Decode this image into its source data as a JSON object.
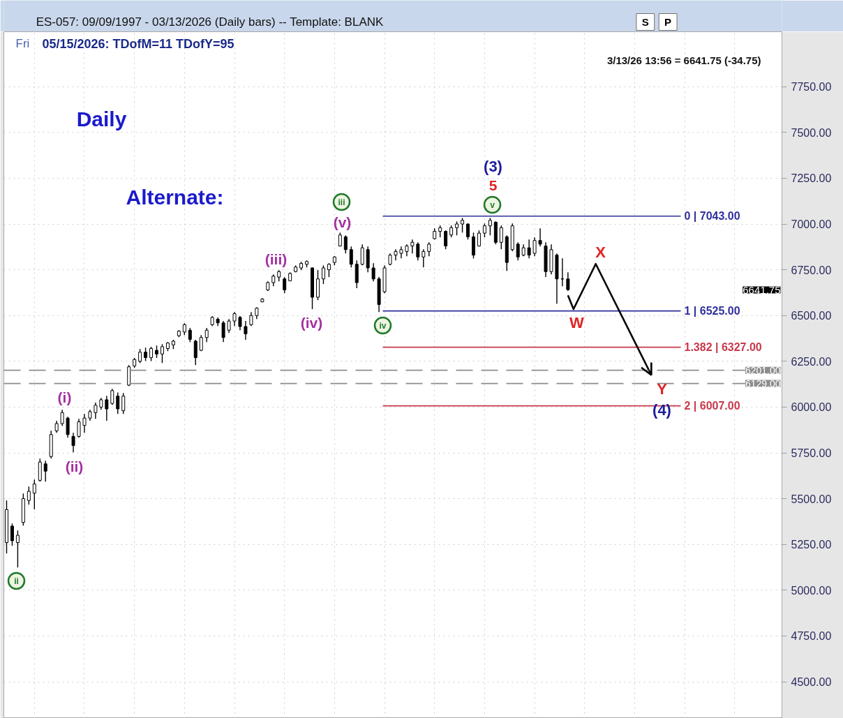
{
  "chart_data": {
    "type": "candlestick",
    "title": "ES-057:  09/09/1997 - 03/13/2026  (Daily bars)  --  Template: BLANK",
    "color": "#000000",
    "categories": [
      null,
      null,
      null,
      null,
      null,
      null,
      null,
      null,
      null,
      null,
      null,
      null,
      null,
      null,
      null,
      null,
      null,
      null,
      null,
      null,
      null,
      null,
      null,
      null,
      null,
      null,
      null,
      null,
      null,
      null,
      null,
      null,
      null,
      null,
      null,
      null,
      null,
      null,
      null,
      null,
      null,
      null,
      null,
      null,
      null,
      null,
      null,
      null,
      null,
      null,
      null,
      null,
      null,
      null,
      null,
      null,
      null,
      null,
      null,
      null,
      null,
      null,
      null,
      null,
      null,
      null,
      null,
      null,
      null,
      null,
      null,
      null,
      null,
      null,
      null,
      null,
      null,
      null,
      null,
      null,
      null,
      null,
      null,
      null,
      null,
      null,
      null,
      null,
      null,
      null,
      null,
      null,
      null,
      null,
      null,
      null,
      null,
      null,
      null,
      null,
      null,
      null,
      null,
      null,
      null,
      null,
      null,
      null,
      null,
      null,
      null,
      null,
      null,
      null,
      null,
      null,
      null,
      null,
      null,
      null,
      null,
      null,
      null,
      null,
      null,
      null,
      null,
      null,
      null,
      null,
      null,
      null,
      null,
      null,
      null,
      null,
      null,
      null,
      null,
      null
    ],
    "ohlc": [
      [
        5260,
        5490,
        5200,
        5440
      ],
      [
        5350,
        5364,
        5242,
        5270
      ],
      [
        5260,
        5326,
        5124,
        5300
      ],
      [
        5370,
        5528,
        5353,
        5500
      ],
      [
        5490,
        5566,
        5467,
        5540
      ],
      [
        5530,
        5604,
        5441,
        5580
      ],
      [
        5600,
        5719,
        5593,
        5700
      ],
      [
        5690,
        5707,
        5593,
        5650
      ],
      [
        5730,
        5871,
        5719,
        5850
      ],
      [
        5870,
        5925,
        5860,
        5910
      ],
      [
        5910,
        5985,
        5898,
        5970
      ],
      [
        5940,
        5947,
        5833,
        5850
      ],
      [
        5840,
        5860,
        5753,
        5790
      ],
      [
        5840,
        5936,
        5833,
        5920
      ],
      [
        5900,
        5963,
        5860,
        5940
      ],
      [
        5940,
        5985,
        5925,
        5975
      ],
      [
        5970,
        6024,
        5936,
        6010
      ],
      [
        6000,
        6050,
        5985,
        6040
      ],
      [
        6040,
        6062,
        5925,
        5990
      ],
      [
        6020,
        6100,
        6012,
        6090
      ],
      [
        6060,
        6080,
        5963,
        5990
      ],
      [
        5980,
        6077,
        5963,
        6060
      ],
      [
        6120,
        6229,
        6115,
        6220
      ],
      [
        6225,
        6268,
        6214,
        6260
      ],
      [
        6250,
        6317,
        6241,
        6300
      ],
      [
        6300,
        6325,
        6252,
        6270
      ],
      [
        6270,
        6329,
        6252,
        6320
      ],
      [
        6310,
        6336,
        6268,
        6290
      ],
      [
        6290,
        6344,
        6241,
        6330
      ],
      [
        6320,
        6355,
        6306,
        6350
      ],
      [
        6340,
        6367,
        6317,
        6360
      ],
      [
        6390,
        6420,
        6382,
        6415
      ],
      [
        6410,
        6458,
        6393,
        6450
      ],
      [
        6420,
        6432,
        6355,
        6370
      ],
      [
        6360,
        6367,
        6229,
        6270
      ],
      [
        6310,
        6393,
        6306,
        6380
      ],
      [
        6380,
        6432,
        6355,
        6420
      ],
      [
        6450,
        6497,
        6443,
        6490
      ],
      [
        6480,
        6489,
        6443,
        6460
      ],
      [
        6460,
        6470,
        6355,
        6380
      ],
      [
        6420,
        6481,
        6405,
        6470
      ],
      [
        6470,
        6519,
        6443,
        6510
      ],
      [
        6490,
        6497,
        6420,
        6440
      ],
      [
        6440,
        6470,
        6367,
        6400
      ],
      [
        6450,
        6519,
        6443,
        6500
      ],
      [
        6500,
        6546,
        6481,
        6540
      ],
      [
        6575,
        6595,
        6572,
        6590
      ],
      [
        6640,
        6687,
        6634,
        6680
      ],
      [
        6680,
        6725,
        6660,
        6715
      ],
      [
        6710,
        6748,
        6687,
        6740
      ],
      [
        6700,
        6710,
        6622,
        6640
      ],
      [
        6690,
        6736,
        6687,
        6730
      ],
      [
        6740,
        6774,
        6736,
        6765
      ],
      [
        6760,
        6793,
        6748,
        6785
      ],
      [
        6780,
        6801,
        6763,
        6795
      ],
      [
        6760,
        6763,
        6535,
        6600
      ],
      [
        6600,
        6748,
        6584,
        6700
      ],
      [
        6700,
        6774,
        6672,
        6760
      ],
      [
        6750,
        6786,
        6710,
        6780
      ],
      [
        6790,
        6824,
        6774,
        6820
      ],
      [
        6880,
        6953,
        6877,
        6940
      ],
      [
        6930,
        6938,
        6839,
        6860
      ],
      [
        6860,
        6877,
        6763,
        6780
      ],
      [
        6780,
        6801,
        6649,
        6680
      ],
      [
        6780,
        6889,
        6774,
        6870
      ],
      [
        6860,
        6877,
        6736,
        6760
      ],
      [
        6760,
        6786,
        6687,
        6700
      ],
      [
        6700,
        6710,
        6519,
        6560
      ],
      [
        6630,
        6774,
        6622,
        6760
      ],
      [
        6780,
        6839,
        6774,
        6830
      ],
      [
        6830,
        6862,
        6801,
        6850
      ],
      [
        6840,
        6877,
        6812,
        6860
      ],
      [
        6850,
        6889,
        6824,
        6880
      ],
      [
        6880,
        6915,
        6839,
        6900
      ],
      [
        6890,
        6900,
        6801,
        6820
      ],
      [
        6820,
        6862,
        6763,
        6850
      ],
      [
        6850,
        6900,
        6824,
        6890
      ],
      [
        6920,
        6976,
        6915,
        6960
      ],
      [
        6960,
        6992,
        6927,
        6980
      ],
      [
        6960,
        6965,
        6862,
        6880
      ],
      [
        6940,
        6992,
        6927,
        6980
      ],
      [
        6980,
        7014,
        6938,
        7000
      ],
      [
        7000,
        7033,
        6953,
        7020
      ],
      [
        7000,
        7003,
        6915,
        6930
      ],
      [
        6930,
        6953,
        6812,
        6830
      ],
      [
        6880,
        6965,
        6877,
        6950
      ],
      [
        6950,
        7003,
        6927,
        6990
      ],
      [
        6990,
        7033,
        6938,
        7020
      ],
      [
        7010,
        7014,
        6889,
        6900
      ],
      [
        6900,
        6992,
        6862,
        6980
      ],
      [
        6930,
        6938,
        6744,
        6790
      ],
      [
        6860,
        7003,
        6851,
        6990
      ],
      [
        6890,
        6900,
        6801,
        6820
      ],
      [
        6830,
        6889,
        6824,
        6870
      ],
      [
        6870,
        6915,
        6812,
        6830
      ],
      [
        6840,
        6927,
        6824,
        6910
      ],
      [
        6910,
        6976,
        6877,
        6890
      ],
      [
        6880,
        6900,
        6710,
        6740
      ],
      [
        6740,
        6889,
        6725,
        6860
      ],
      [
        6830,
        6839,
        6565,
        6700
      ],
      [
        6700,
        6812,
        6660,
        6700
      ],
      [
        6700,
        6736,
        6634,
        6641.75
      ],
      null,
      null,
      null,
      null,
      null,
      null,
      null,
      null,
      null,
      null,
      null,
      null,
      null,
      null,
      null,
      null,
      null,
      null,
      null,
      null,
      null,
      null,
      null,
      null,
      null,
      null,
      null,
      null,
      null,
      null,
      null,
      null,
      null,
      null,
      null,
      null,
      null,
      null
    ],
    "series": [
      {
        "type": "line",
        "color": "#000000",
        "values": [
          null,
          null,
          null,
          null,
          null,
          null,
          null,
          null,
          null,
          null,
          null,
          null,
          null,
          null,
          null,
          null,
          null,
          null,
          null,
          null,
          null,
          null,
          null,
          null,
          null,
          null,
          null,
          null,
          null,
          null,
          null,
          null,
          null,
          null,
          null,
          null,
          null,
          null,
          null,
          null,
          null,
          null,
          null,
          null,
          null,
          null,
          null,
          null,
          null,
          null,
          null,
          null,
          null,
          null,
          null,
          null,
          null,
          null,
          null,
          null,
          null,
          null,
          null,
          null,
          null,
          null,
          null,
          null,
          null,
          null,
          null,
          null,
          null,
          null,
          null,
          null,
          null,
          null,
          null,
          null,
          null,
          null,
          null,
          null,
          null,
          null,
          null,
          null,
          null,
          null,
          null,
          null,
          null,
          null,
          null,
          null,
          null,
          null,
          null,
          null,
          null,
          6610,
          6535,
          null,
          null,
          null,
          6782,
          null,
          null,
          null,
          null,
          null,
          null,
          null,
          null,
          null,
          6175,
          null,
          null,
          null,
          null,
          null,
          null,
          null,
          null,
          null,
          null,
          null,
          null,
          null,
          null,
          null,
          null,
          null,
          null,
          null,
          null,
          null,
          null,
          null
        ]
      }
    ],
    "ylim": [
      4300,
      8050
    ],
    "yticks": [
      {
        "value": 4500,
        "label": "4500.00"
      },
      {
        "value": 4750,
        "label": "4750.00"
      },
      {
        "value": 5000,
        "label": "5000.00"
      },
      {
        "value": 5250,
        "label": "5250.00"
      },
      {
        "value": 5500,
        "label": "5500.00"
      },
      {
        "value": 5750,
        "label": "5750.00"
      },
      {
        "value": 6000,
        "label": "6000.00"
      },
      {
        "value": 6250,
        "label": "6250.00"
      },
      {
        "value": 6500,
        "label": "6500.00"
      },
      {
        "value": 6750,
        "label": "6750.00"
      },
      {
        "value": 7000,
        "label": "7000.00"
      },
      {
        "value": 7250,
        "label": "7250.00"
      },
      {
        "value": 7500,
        "label": "7500.00"
      },
      {
        "value": 7750,
        "label": "7750.00"
      }
    ],
    "tick_labels": "y",
    "grid": true,
    "ref_lines": [
      {
        "axis": "y",
        "value": 7043,
        "label": "0 | 7043.00",
        "color": "#2f2f9c"
      },
      {
        "axis": "y",
        "value": 6525,
        "label": "1 | 6525.00",
        "color": "#2f2f9c"
      },
      {
        "axis": "y",
        "value": 6327,
        "label": "1.382 | 6327.00",
        "color": "#c8384a"
      },
      {
        "axis": "y",
        "value": 6007,
        "label": "2 | 6007.00",
        "color": "#c8384a"
      },
      {
        "axis": "y",
        "value": 6201,
        "label": "6201.00",
        "color": "#8c8c8c",
        "line_style": "dashed"
      },
      {
        "axis": "y",
        "value": 6129,
        "label": "6129.00",
        "color": "#8c8c8c",
        "line_style": "dashed"
      }
    ],
    "annotations": [
      "Fri",
      "05/15/2026:  TDofM=11  TDofY=95",
      "3/13/26 13:56 = 6641.75 (-34.75)",
      "Daily",
      "Alternate:",
      "(i)",
      "(ii)",
      "(iii)",
      "(iv)",
      "(v)",
      "iii",
      "iv",
      "v",
      "ii",
      "(3)",
      "5",
      "W",
      "X",
      "Y",
      "(4)",
      "6641.75",
      "S",
      "P"
    ]
  }
}
